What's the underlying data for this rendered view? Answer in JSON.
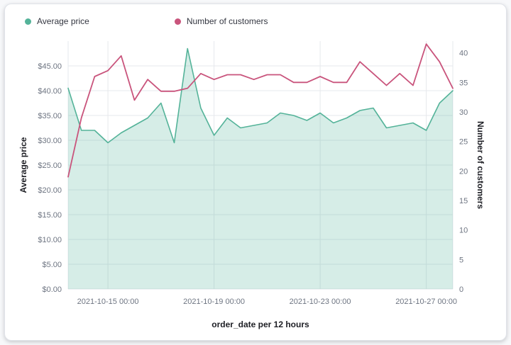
{
  "legend": {
    "items": [
      {
        "label": "Average price",
        "color": "#54b399"
      },
      {
        "label": "Number of customers",
        "color": "#c9547c"
      }
    ]
  },
  "axes": {
    "left_title": "Average price",
    "right_title": "Number of customers",
    "x_title": "order_date per 12 hours"
  },
  "chart_data": {
    "type": "area",
    "title": "",
    "xlabel": "order_date per 12 hours",
    "legend_position": "top",
    "grid": true,
    "x": [
      "2021-10-13 12:00",
      "2021-10-14 00:00",
      "2021-10-14 12:00",
      "2021-10-15 00:00",
      "2021-10-15 12:00",
      "2021-10-16 00:00",
      "2021-10-16 12:00",
      "2021-10-17 00:00",
      "2021-10-17 12:00",
      "2021-10-18 00:00",
      "2021-10-18 12:00",
      "2021-10-19 00:00",
      "2021-10-19 12:00",
      "2021-10-20 00:00",
      "2021-10-20 12:00",
      "2021-10-21 00:00",
      "2021-10-21 12:00",
      "2021-10-22 00:00",
      "2021-10-22 12:00",
      "2021-10-23 00:00",
      "2021-10-23 12:00",
      "2021-10-24 00:00",
      "2021-10-24 12:00",
      "2021-10-25 00:00",
      "2021-10-25 12:00",
      "2021-10-26 00:00",
      "2021-10-26 12:00",
      "2021-10-27 00:00",
      "2021-10-27 12:00",
      "2021-10-28 00:00"
    ],
    "series": [
      {
        "name": "Average price",
        "type": "area",
        "axis": "left",
        "color": "#54b399",
        "fill": "rgba(84,179,153,0.24)",
        "values": [
          40.5,
          32.0,
          32.0,
          29.5,
          31.5,
          33.0,
          34.5,
          37.5,
          29.5,
          48.5,
          36.5,
          31.0,
          34.5,
          32.5,
          33.0,
          33.5,
          35.5,
          35.0,
          34.0,
          35.5,
          33.5,
          34.5,
          36.0,
          36.5,
          32.5,
          33.0,
          33.5,
          32.0,
          37.5,
          40.0
        ]
      },
      {
        "name": "Number of customers",
        "type": "line",
        "axis": "right",
        "color": "#c9547c",
        "values": [
          19,
          29,
          36,
          37,
          39.5,
          32,
          35.5,
          33.5,
          33.5,
          34,
          36.5,
          35.5,
          36.3,
          36.3,
          35.5,
          36.3,
          36.3,
          35,
          35,
          36,
          35,
          35,
          38.5,
          36.5,
          34.5,
          36.5,
          34.5,
          41.5,
          38.5,
          34
        ]
      }
    ],
    "left_axis": {
      "title": "Average price",
      "min": 0,
      "max": 50,
      "ticks": [
        0,
        5,
        10,
        15,
        20,
        25,
        30,
        35,
        40,
        45
      ],
      "tick_labels": [
        "$0.00",
        "$5.00",
        "$10.00",
        "$15.00",
        "$20.00",
        "$25.00",
        "$30.00",
        "$35.00",
        "$40.00",
        "$45.00"
      ]
    },
    "right_axis": {
      "title": "Number of customers",
      "min": 0,
      "max": 42,
      "ticks": [
        0,
        5,
        10,
        15,
        20,
        25,
        30,
        35,
        40
      ],
      "tick_labels": [
        "0",
        "5",
        "10",
        "15",
        "20",
        "25",
        "30",
        "35",
        "40"
      ]
    },
    "x_axis": {
      "title": "order_date per 12 hours",
      "tick_indices": [
        3,
        11,
        19,
        27
      ],
      "tick_labels": [
        "2021-10-15 00:00",
        "2021-10-19 00:00",
        "2021-10-23 00:00",
        "2021-10-27 00:00"
      ]
    },
    "gridline_color": "#e6e8ec"
  }
}
